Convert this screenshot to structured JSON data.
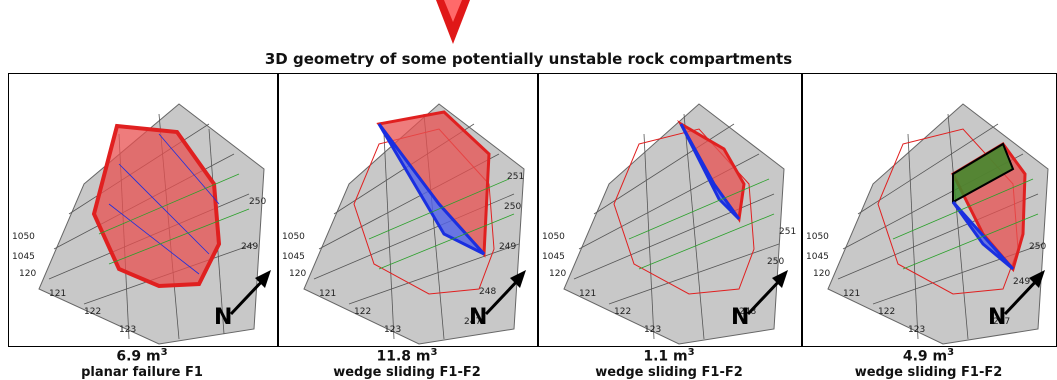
{
  "title": "3D geometry of some potentially unstable rock compartments",
  "axis_z_labels": [
    "1050",
    "1045"
  ],
  "axis_x_labels": [
    "120",
    "121",
    "122",
    "123"
  ],
  "axis_y_labels": [
    "247",
    "248",
    "249",
    "250",
    "251"
  ],
  "north_label": "N",
  "panels": [
    {
      "volume": "6.9 m",
      "unit_exp": "3",
      "mechanism": "planar failure F1"
    },
    {
      "volume": "11.8 m",
      "unit_exp": "3",
      "mechanism": "wedge sliding F1-F2"
    },
    {
      "volume": "1.1 m",
      "unit_exp": "3",
      "mechanism": "wedge sliding F1-F2"
    },
    {
      "volume": "4.9 m",
      "unit_exp": "3",
      "mechanism": "wedge sliding F1-F2"
    }
  ],
  "colors": {
    "surface": "#c8c8c8",
    "grid": "#555555",
    "plane_red": "#e02020",
    "plane_blue": "#1a2fe0",
    "plane_green": "#2aa02a",
    "arrow": "#e01818"
  }
}
